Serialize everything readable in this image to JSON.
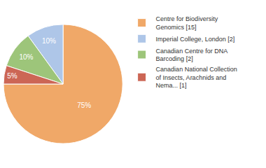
{
  "chart_data": {
    "type": "pie",
    "categories": [
      "Centre for Biodiversity\nGenomics [15]",
      "Imperial College, London [2]",
      "Canadian Centre for DNA\nBarcoding [2]",
      "Canadian National Collection\nof Insects, Arachnids and\nNema... [1]"
    ],
    "values": [
      75,
      10,
      10,
      5
    ],
    "value_labels": [
      "75%",
      "10%",
      "10%",
      "5%"
    ],
    "colors": [
      "#f0a868",
      "#aec6e8",
      "#9dc57a",
      "#cc6655"
    ],
    "data_labels": true,
    "legend": "right"
  }
}
